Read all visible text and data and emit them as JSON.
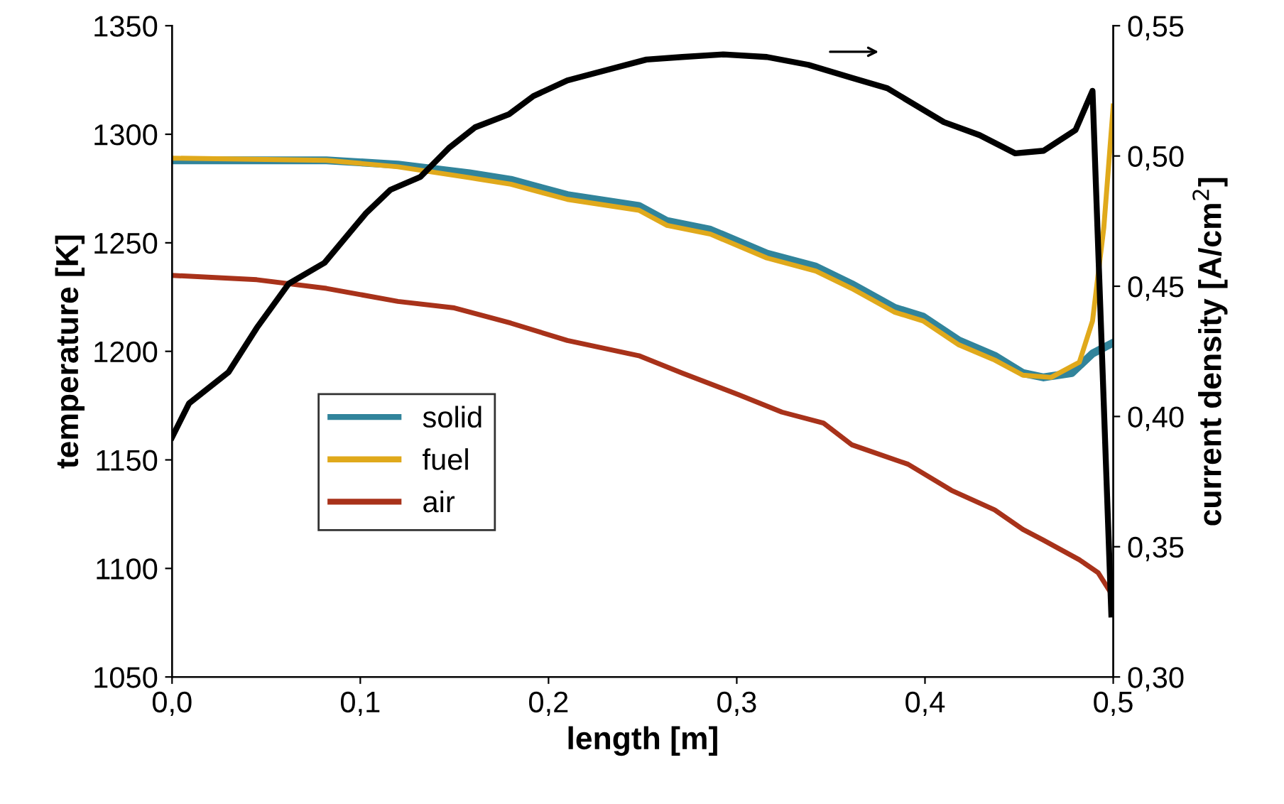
{
  "chart_data": {
    "type": "line",
    "xlabel": "length [m]",
    "ylabel": "temperature [K]",
    "y2label": "current density [A/cm$^{2}$]",
    "xlim": [
      0,
      0.5
    ],
    "ylim": [
      1050,
      1350
    ],
    "y2lim": [
      0.3,
      0.55
    ],
    "xticks": [
      {
        "value": 0,
        "label": "0,0"
      },
      {
        "value": 0.1,
        "label": "0,1"
      },
      {
        "value": 0.2,
        "label": "0,2"
      },
      {
        "value": 0.3,
        "label": "0,3"
      },
      {
        "value": 0.4,
        "label": "0,4"
      },
      {
        "value": 0.5,
        "label": "0,5"
      }
    ],
    "yticks": [
      1050,
      1100,
      1150,
      1200,
      1250,
      1300,
      1350
    ],
    "y2ticks": [
      {
        "value": 0.3,
        "label": "0,30"
      },
      {
        "value": 0.35,
        "label": "0,35"
      },
      {
        "value": 0.4,
        "label": "0,40"
      },
      {
        "value": 0.45,
        "label": "0,45"
      },
      {
        "value": 0.5,
        "label": "0,50"
      },
      {
        "value": 0.55,
        "label": "0,55"
      }
    ],
    "grid": false,
    "legend": "left",
    "marker": "none",
    "line_style": "solid",
    "series": [
      {
        "name": "solid",
        "color": "#31849b",
        "x": [
          0,
          0.082,
          0.12,
          0.158,
          0.18,
          0.21,
          0.248,
          0.263,
          0.286,
          0.316,
          0.342,
          0.361,
          0.384,
          0.399,
          0.418,
          0.437,
          0.452,
          0.463,
          0.478,
          0.489,
          0.5
        ],
        "values": [
          1288,
          1288,
          1286,
          1282,
          1279,
          1272,
          1267,
          1260,
          1256,
          1245,
          1239,
          1231,
          1220,
          1216,
          1205,
          1198,
          1190,
          1188,
          1190,
          1199,
          1204
        ]
      },
      {
        "name": "fuel",
        "color": "#e0a91b",
        "x": [
          0,
          0.082,
          0.12,
          0.158,
          0.18,
          0.21,
          0.248,
          0.263,
          0.286,
          0.316,
          0.342,
          0.361,
          0.384,
          0.399,
          0.418,
          0.437,
          0.452,
          0.467,
          0.482,
          0.489,
          0.495,
          0.5
        ],
        "values": [
          1289,
          1288,
          1285,
          1280,
          1277,
          1270,
          1265,
          1258,
          1254,
          1243,
          1237,
          1229,
          1218,
          1214,
          1203,
          1196,
          1189,
          1188,
          1195,
          1214,
          1257,
          1313
        ]
      },
      {
        "name": "air",
        "color": "#a8321a",
        "x": [
          0,
          0.045,
          0.082,
          0.12,
          0.15,
          0.18,
          0.21,
          0.248,
          0.271,
          0.301,
          0.324,
          0.346,
          0.361,
          0.391,
          0.414,
          0.437,
          0.452,
          0.463,
          0.482,
          0.492,
          0.5
        ],
        "values": [
          1235,
          1233,
          1229,
          1223,
          1220,
          1213,
          1205,
          1198,
          1190,
          1180,
          1172,
          1167,
          1157,
          1148,
          1136,
          1127,
          1118,
          1113,
          1104,
          1098,
          1087
        ]
      },
      {
        "color": "#000000",
        "axis": "y2",
        "x": [
          0,
          0.009,
          0.03,
          0.045,
          0.062,
          0.081,
          0.103,
          0.116,
          0.132,
          0.147,
          0.161,
          0.179,
          0.192,
          0.21,
          0.231,
          0.252,
          0.271,
          0.293,
          0.316,
          0.338,
          0.361,
          0.38,
          0.41,
          0.429,
          0.448,
          0.463,
          0.48,
          0.489,
          0.499
        ],
        "values": [
          0.392,
          0.405,
          0.417,
          0.434,
          0.451,
          0.459,
          0.478,
          0.487,
          0.492,
          0.503,
          0.511,
          0.516,
          0.523,
          0.529,
          0.533,
          0.537,
          0.538,
          0.539,
          0.538,
          0.535,
          0.53,
          0.526,
          0.513,
          0.508,
          0.501,
          0.502,
          0.51,
          0.525,
          0.324
        ]
      }
    ]
  }
}
